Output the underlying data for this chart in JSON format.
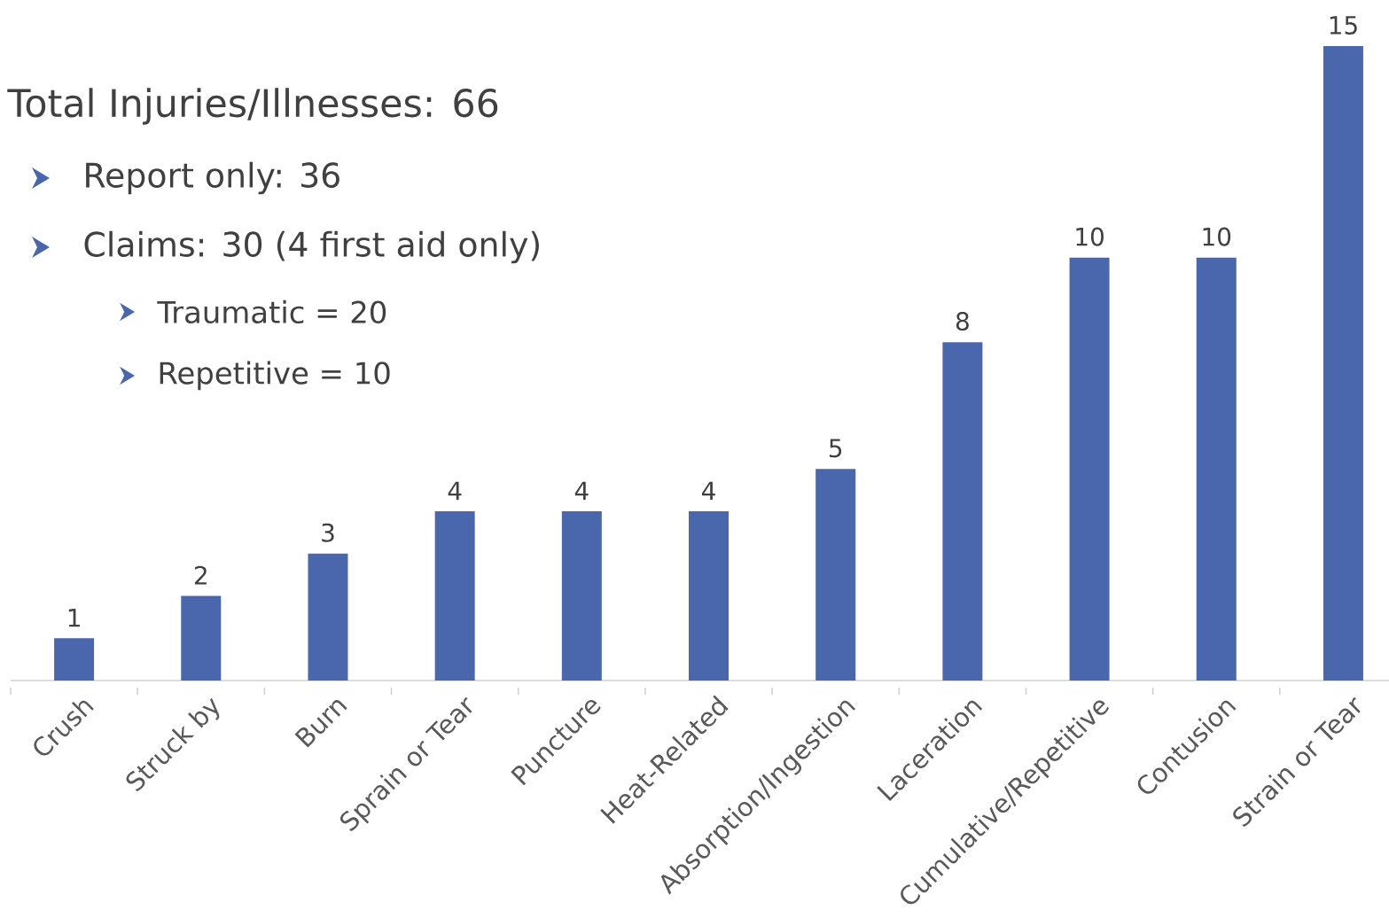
{
  "chart_data": {
    "type": "bar",
    "title": "Total Injuries/Illnesses: 66",
    "annotations": [
      "Report only: 36",
      "Claims: 30 (4 first aid only)",
      "Traumatic = 20",
      "Repetitive = 10"
    ],
    "categories": [
      "Crush",
      "Struck by",
      "Burn",
      "Sprain or Tear",
      "Puncture",
      "Heat-Related",
      "Absorption/Ingestion",
      "Laceration",
      "Cumulative/Repetitive",
      "Contusion",
      "Strain or Tear"
    ],
    "values": [
      1,
      2,
      3,
      4,
      4,
      4,
      5,
      8,
      10,
      10,
      15
    ],
    "color": "#4a67ad",
    "data_labels": true
  }
}
